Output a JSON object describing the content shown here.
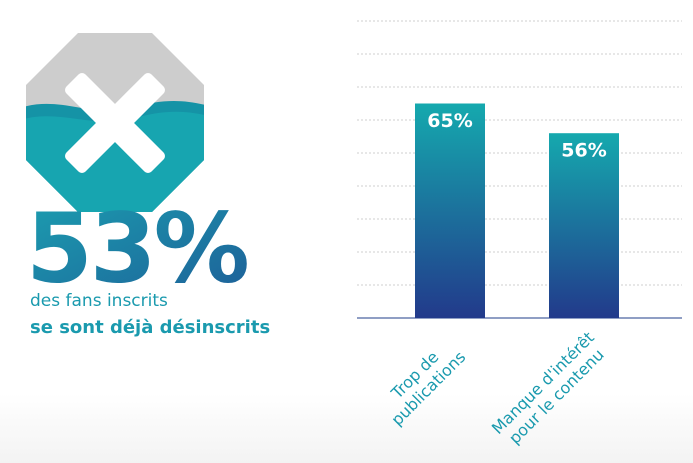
{
  "infographic": {
    "stat": "53%",
    "line1": "des fans inscrits",
    "line2": "se sont déjà désinscrits"
  },
  "chart_data": {
    "type": "bar",
    "categories": [
      "Trop de\npublications",
      "Manque d'intérêt\npour le contenu"
    ],
    "values": [
      65,
      56
    ],
    "value_labels": [
      "65%",
      "56%"
    ],
    "colors": [
      "#15a9ae",
      "#223a8b"
    ],
    "ylim": [
      0,
      90
    ],
    "yticks": [
      10,
      20,
      30,
      40,
      50,
      60,
      70,
      80,
      90
    ],
    "grid": true
  }
}
